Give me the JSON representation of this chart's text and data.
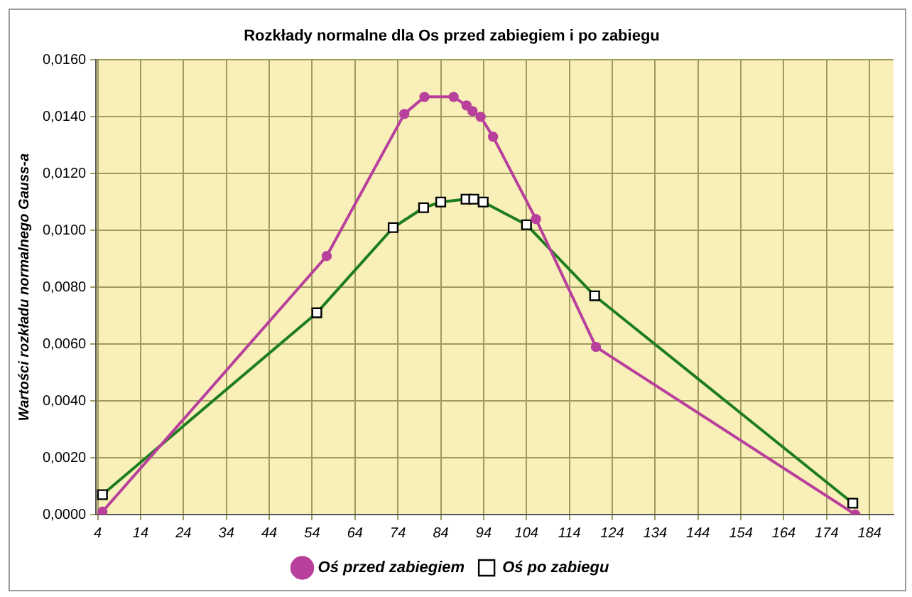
{
  "chart_data": {
    "type": "line",
    "title": "Rozkłady normalne dla Os przed zabiegiem i po zabiegu",
    "ylabel": "Wartości rozkładu normalnego Gauss-a",
    "series": [
      {
        "name": "Oś przed zabiegiem",
        "color": "#b8409c",
        "marker": "circle",
        "x": [
          5.1,
          57.4,
          75.5,
          80.2,
          87.0,
          90.0,
          91.4,
          93.3,
          96.2,
          106.2,
          120.2,
          180.7
        ],
        "values": [
          0.0001,
          0.0091,
          0.0141,
          0.0147,
          0.0147,
          0.0144,
          0.0142,
          0.014,
          0.0133,
          0.0104,
          0.0059,
          0.0
        ]
      },
      {
        "name": "Oś po zabiegu",
        "color": "#1e7d1e",
        "marker": "square",
        "x": [
          5.1,
          55.1,
          72.9,
          80.0,
          84.0,
          89.9,
          91.7,
          93.9,
          104.0,
          119.9,
          180.1
        ],
        "values": [
          0.0007,
          0.0071,
          0.0101,
          0.0108,
          0.011,
          0.0111,
          0.0111,
          0.011,
          0.0102,
          0.0077,
          0.0004
        ]
      }
    ],
    "xlim": [
      3.6,
      189.6
    ],
    "xticks": [
      4,
      14,
      24,
      34,
      44,
      54,
      64,
      74,
      84,
      94,
      104,
      114,
      124,
      134,
      144,
      154,
      164,
      174,
      184
    ],
    "ylim": [
      0,
      0.016
    ],
    "yticks": [
      {
        "value": 0,
        "label": "0,0000"
      },
      {
        "value": 0.002,
        "label": "0,0020"
      },
      {
        "value": 0.004,
        "label": "0,0040"
      },
      {
        "value": 0.006,
        "label": "0,0060"
      },
      {
        "value": 0.008,
        "label": "0,0080"
      },
      {
        "value": 0.01,
        "label": "0,0100"
      },
      {
        "value": 0.012,
        "label": "0,0120"
      },
      {
        "value": 0.014,
        "label": "0,0140"
      },
      {
        "value": 0.016,
        "label": "0,0160"
      }
    ],
    "grid": true,
    "legend": "bottom",
    "line_style": "solid"
  }
}
